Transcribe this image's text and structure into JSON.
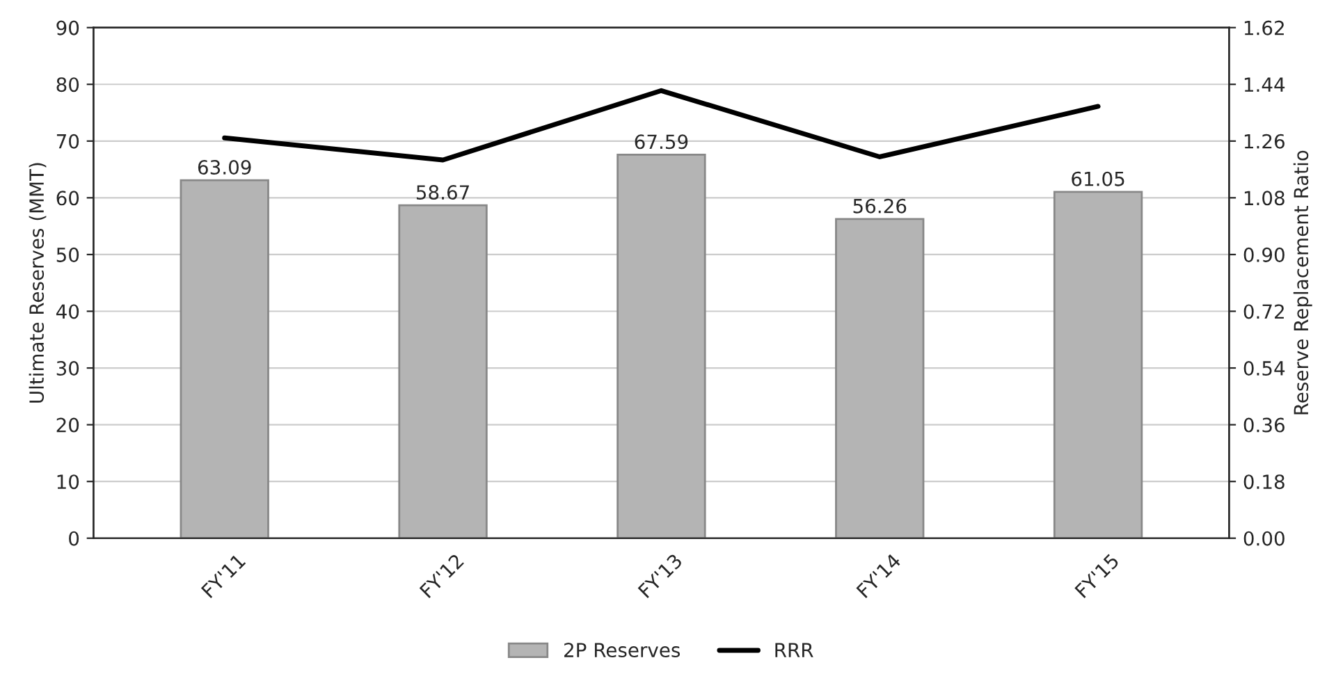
{
  "chart_data": {
    "type": "bar",
    "ylabel": "Ultimate Reserves (MMT)",
    "y2label": "Reserve Replacement Ratio",
    "categories": [
      "FY'11",
      "FY'12",
      "FY'13",
      "FY'14",
      "FY'15"
    ],
    "series": [
      {
        "name": "2P Reserves",
        "color": "#b4b4b4",
        "values": [
          63.09,
          58.67,
          67.59,
          56.26,
          61.05
        ],
        "value_labels": [
          "63.09",
          "58.67",
          "67.59",
          "56.26",
          "61.05"
        ]
      },
      {
        "name": "RRR",
        "type": "line",
        "axis": "y2",
        "color": "#000000",
        "values": [
          1.27,
          1.2,
          1.42,
          1.21,
          1.37
        ]
      }
    ],
    "ylim": [
      0,
      90
    ],
    "yticks": [
      0,
      10,
      20,
      30,
      40,
      50,
      60,
      70,
      80,
      90
    ],
    "y2lim": [
      0,
      1.62
    ],
    "y2ticks": [
      {
        "value": 0,
        "label": "0.00"
      },
      {
        "value": 0.18,
        "label": "0.18"
      },
      {
        "value": 0.36,
        "label": "0.36"
      },
      {
        "value": 0.54,
        "label": "0.54"
      },
      {
        "value": 0.72,
        "label": "0.72"
      },
      {
        "value": 0.9,
        "label": "0.90"
      },
      {
        "value": 1.08,
        "label": "1.08"
      },
      {
        "value": 1.26,
        "label": "1.26"
      },
      {
        "value": 1.44,
        "label": "1.44"
      },
      {
        "value": 1.62,
        "label": "1.62"
      }
    ],
    "grid": "y",
    "legend": "bottom"
  }
}
